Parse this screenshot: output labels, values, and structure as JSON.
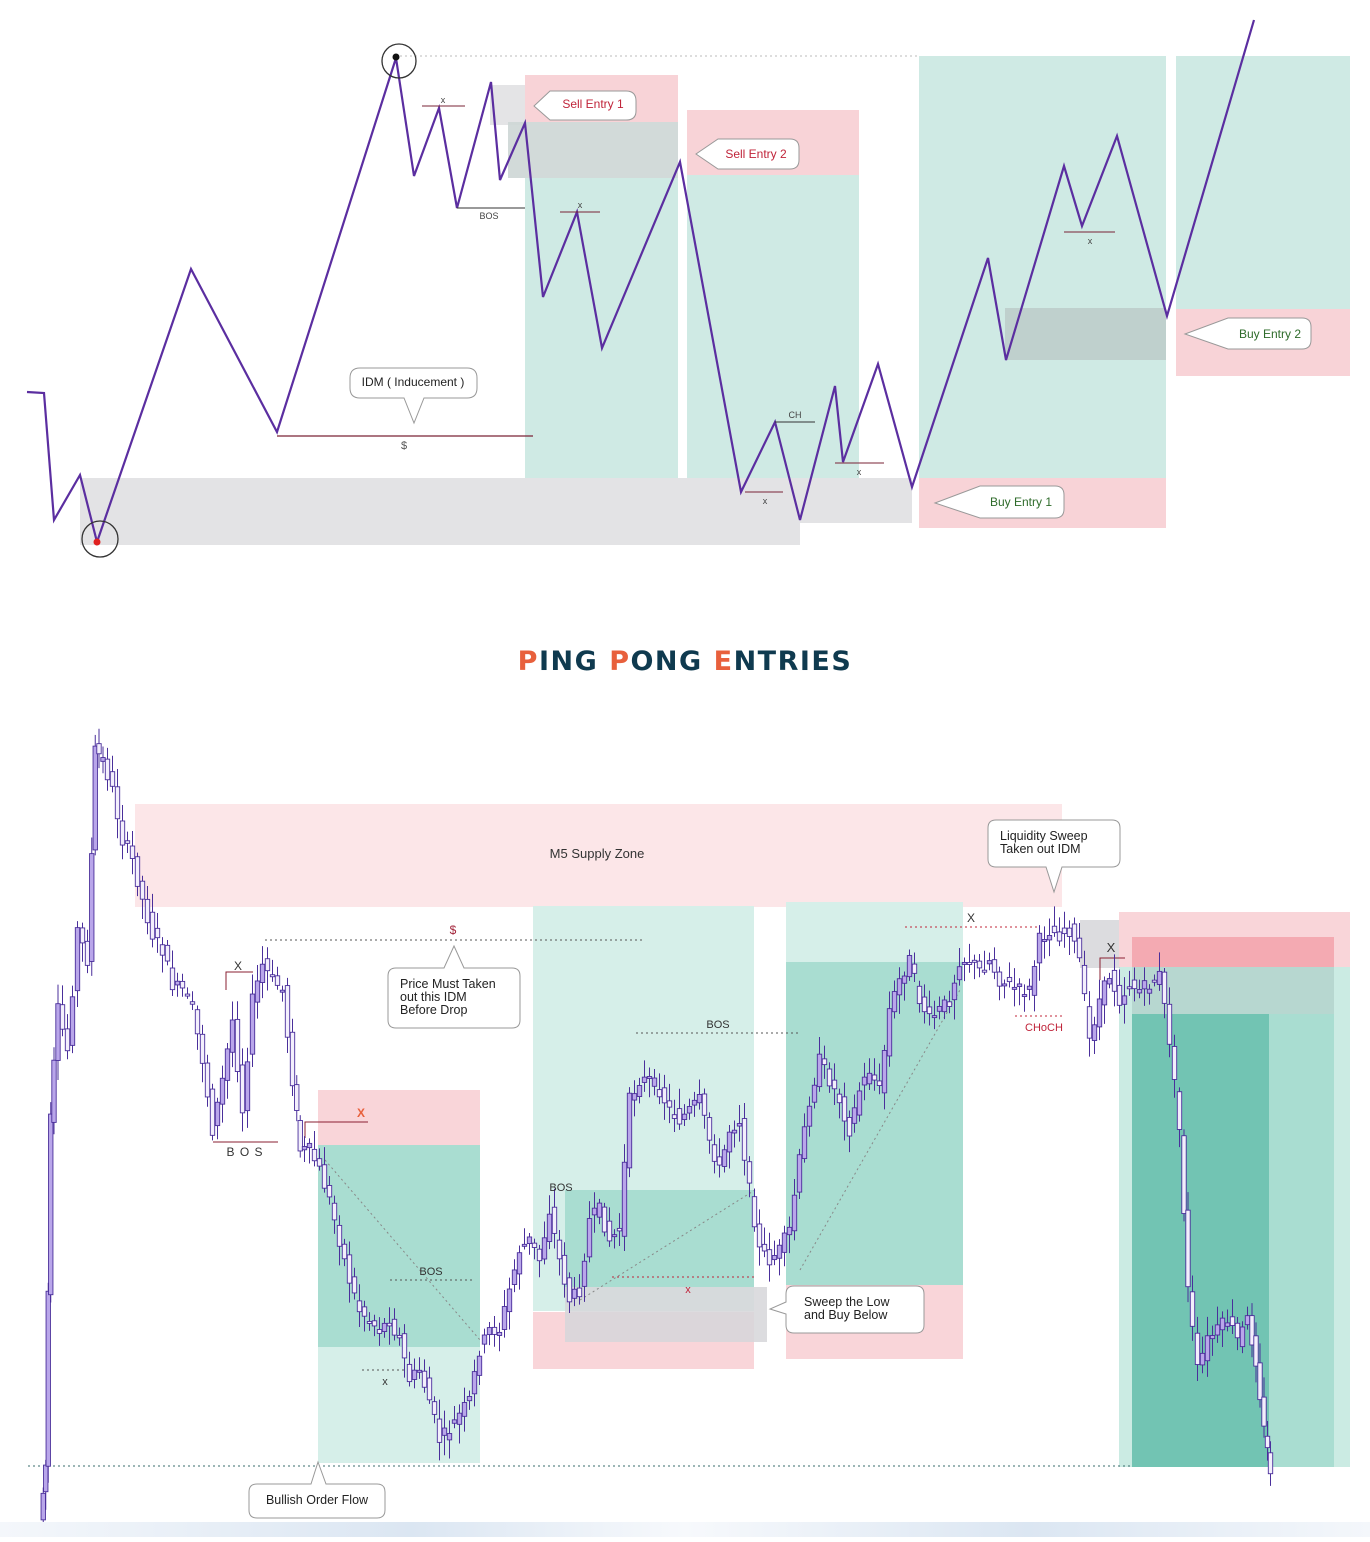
{
  "title": {
    "parts": [
      {
        "text": "P",
        "accent": true
      },
      {
        "text": "ING ",
        "accent": false
      },
      {
        "text": "P",
        "accent": true
      },
      {
        "text": "ONG ",
        "accent": false
      },
      {
        "text": "E",
        "accent": true
      },
      {
        "text": "NTRIES",
        "accent": false
      }
    ]
  },
  "colors": {
    "line": "#5b2ea0",
    "sell_zone": "#f8d3d7",
    "buy_zone": "#cfeae4",
    "buy_zone_dark": "#8fd3c5",
    "gray_zone": "#dcdcdf",
    "accent_title": "#e8603c",
    "title_dark": "#0f3a4f",
    "candle_fill": "#b9a6ea",
    "candle_stroke": "#4a2f9b"
  },
  "chart_data": [
    {
      "type": "line",
      "description_free": true,
      "x": [
        0,
        1,
        2,
        3,
        4,
        5,
        6,
        7,
        8,
        9,
        10,
        11,
        12,
        13,
        14,
        15,
        16,
        17,
        18,
        19,
        20,
        21,
        22,
        23,
        24,
        25,
        26,
        27,
        28,
        29,
        30,
        31,
        32,
        33,
        34,
        35,
        36,
        37
      ],
      "labels": {
        "sell_entry_1": "Sell Entry 1",
        "sell_entry_2": "Sell Entry 2",
        "buy_entry_1": "Buy Entry 1",
        "buy_entry_2": "Buy Entry 2",
        "idm": "IDM ( Inducement )",
        "liquidity_mark": "$",
        "bos": "BOS",
        "ch": "CH",
        "x_marks": [
          "x",
          "x",
          "x",
          "x",
          "x"
        ]
      }
    },
    {
      "type": "candlestick",
      "labels": {
        "supply_zone": "M5  Supply Zone",
        "liquidity_sweep": [
          "Liquidity Sweep",
          "Taken out IDM"
        ],
        "price_must": [
          "Price Must Taken",
          "out this IDM",
          "Before Drop"
        ],
        "sweep_low": [
          "Sweep the Low",
          "and Buy Below"
        ],
        "bullish_flow": "Bullish Order Flow",
        "bos_spaced": "B O S",
        "bos": [
          "BOS",
          "BOS",
          "BOS"
        ],
        "choch": "CHoCH",
        "x_marks": [
          "X",
          "X",
          "X",
          "x",
          "x",
          "X"
        ],
        "liquidity_mark": "$"
      }
    }
  ]
}
